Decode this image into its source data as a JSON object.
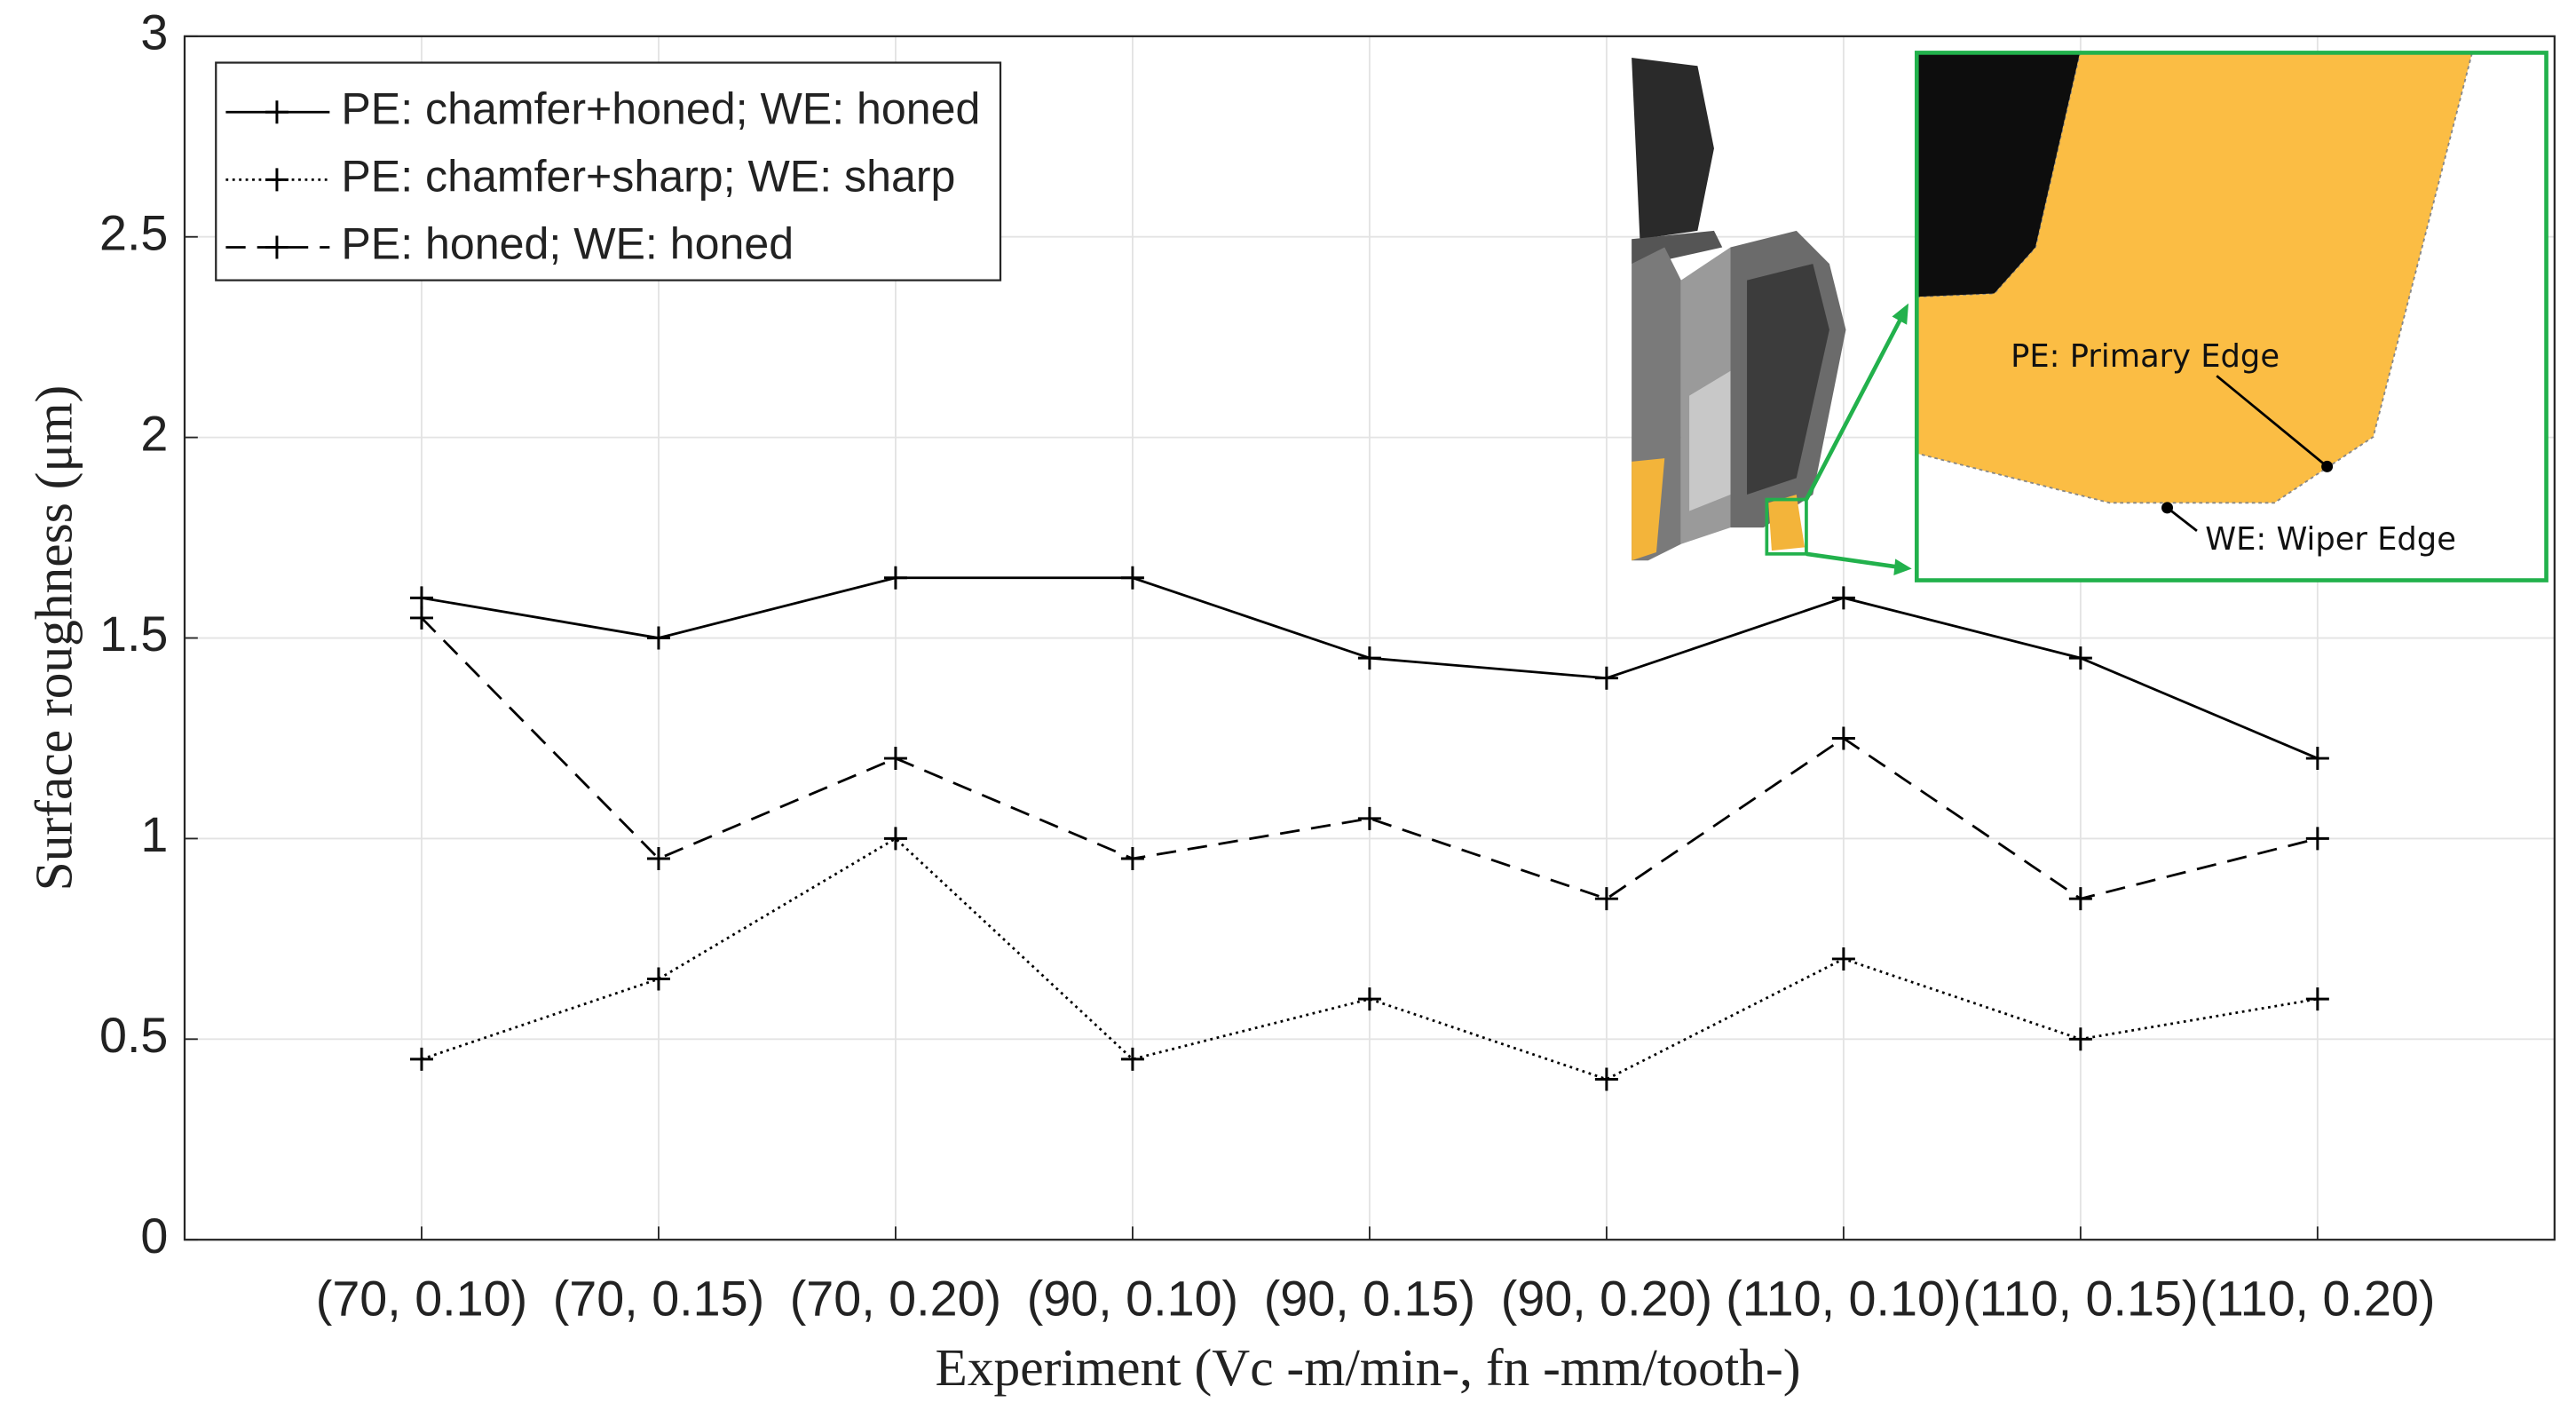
{
  "chart_data": {
    "type": "line",
    "x_label": "Experiment (Vc -m/min-, fn -mm/tooth-)",
    "y_label": "Surface roughness (μm)",
    "categories": [
      "(70, 0.10)",
      "(70, 0.15)",
      "(70, 0.20)",
      "(90, 0.10)",
      "(90, 0.15)",
      "(90, 0.20)",
      "(110, 0.10)",
      "(110, 0.15)",
      "(110, 0.20)"
    ],
    "series": [
      {
        "name": "PE: chamfer+honed; WE: honed",
        "color": "#000000",
        "style": "solid",
        "values": [
          1.6,
          1.5,
          1.65,
          1.65,
          1.45,
          1.4,
          1.6,
          1.45,
          1.2
        ]
      },
      {
        "name": "PE: chamfer+sharp; WE: sharp",
        "color": "#000000",
        "style": "dotted",
        "values": [
          0.45,
          0.65,
          1.0,
          0.45,
          0.6,
          0.4,
          0.7,
          0.5,
          0.6
        ]
      },
      {
        "name": "PE: honed; WE: honed",
        "color": "#000000",
        "style": "dashed",
        "values": [
          1.55,
          0.95,
          1.2,
          0.95,
          1.05,
          0.85,
          1.25,
          0.85,
          1.0
        ]
      }
    ],
    "ylim": [
      0,
      3
    ],
    "yticks": [
      0,
      0.5,
      1,
      1.5,
      2,
      2.5,
      3
    ],
    "grid": true,
    "legend": "upper-left",
    "annotations": [
      "PE: Primary Edge",
      "WE: Wiper Edge"
    ]
  }
}
